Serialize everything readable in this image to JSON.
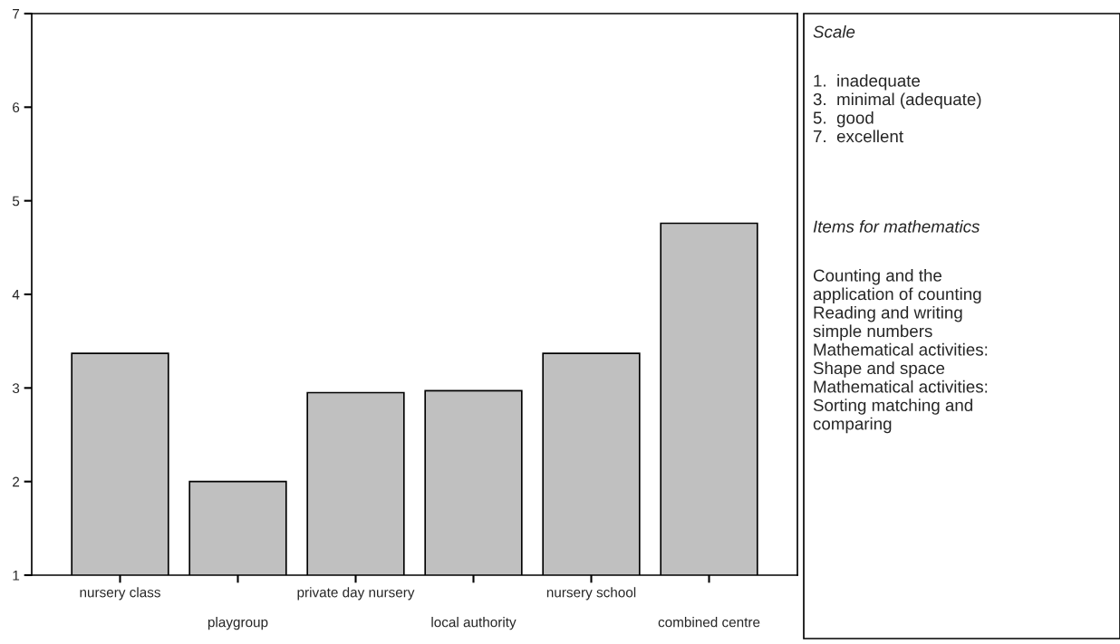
{
  "chart_data": {
    "type": "bar",
    "categories": [
      "nursery class",
      "playgroup",
      "private day nursery",
      "local authority",
      "nursery school",
      "combined centre"
    ],
    "values": [
      3.37,
      2.0,
      2.95,
      2.97,
      3.37,
      4.76
    ],
    "color": "#c0c0c0",
    "ylim": [
      1,
      7
    ],
    "yticks": [
      1,
      2,
      3,
      4,
      5,
      6,
      7
    ],
    "grid": false,
    "annotations": [
      "Scale",
      "1.  inadequate\n3.  minimal (adequate)\n5.  good\n7.  excellent",
      "Items for mathematics",
      "Counting and the\napplication of counting\nReading and writing\nsimple numbers\nMathematical activities:\nShape and space\nMathematical activities:\nSorting matching and\ncomparing"
    ]
  }
}
